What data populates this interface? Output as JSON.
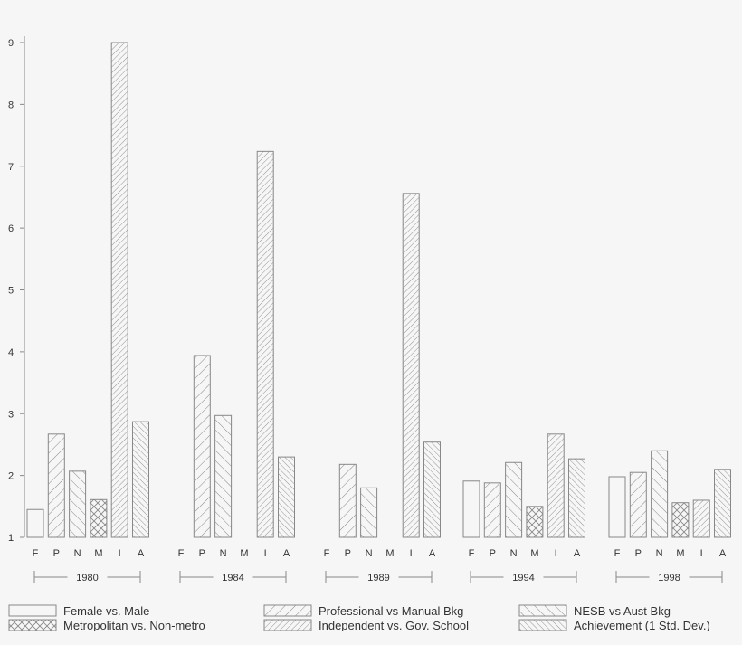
{
  "chart_data": {
    "type": "bar",
    "ylim": [
      1,
      9
    ],
    "yticks": [
      "1",
      "2",
      "3",
      "4",
      "5",
      "6",
      "7",
      "8",
      "9"
    ],
    "grid": false,
    "legend_position": "bottom",
    "category_labels": [
      "F",
      "P",
      "N",
      "M",
      "I",
      "A"
    ],
    "groups": [
      "1980",
      "1984",
      "1989",
      "1994",
      "1998"
    ],
    "series": [
      {
        "name": "Female vs. Male",
        "code": "F",
        "pattern": "none",
        "values": [
          1.45,
          null,
          null,
          1.91,
          1.98
        ]
      },
      {
        "name": "Professional vs Manual Bkg",
        "code": "P",
        "pattern": "forward-diagonal-wide",
        "values": [
          2.67,
          3.94,
          2.18,
          1.88,
          2.05
        ]
      },
      {
        "name": "NESB vs Aust Bkg",
        "code": "N",
        "pattern": "back-diagonal-wide",
        "values": [
          2.07,
          2.97,
          1.8,
          2.21,
          2.4
        ]
      },
      {
        "name": "Metropolitan vs. Non-metro",
        "code": "M",
        "pattern": "cross-hatch",
        "values": [
          1.61,
          null,
          null,
          1.5,
          1.56
        ]
      },
      {
        "name": "Independent vs. Gov. School",
        "code": "I",
        "pattern": "forward-diagonal-dense",
        "values": [
          9.0,
          7.24,
          6.56,
          2.67,
          1.6
        ]
      },
      {
        "name": "Achievement (1 Std. Dev.)",
        "code": "A",
        "pattern": "back-diagonal-dense",
        "values": [
          2.87,
          2.3,
          2.54,
          2.27,
          2.1
        ]
      }
    ],
    "colors": {
      "background": "#f6f6f6",
      "stroke": "#888888",
      "text": "#333333"
    }
  }
}
